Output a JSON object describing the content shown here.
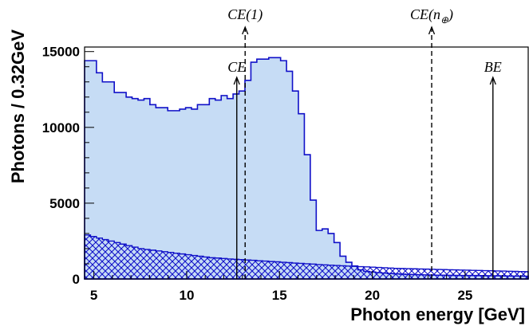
{
  "chart_data": {
    "type": "area",
    "xlabel": "Photon energy [GeV]",
    "ylabel": "Photons / 0.32GeV",
    "xlim": [
      4.5,
      28.4
    ],
    "ylim": [
      0,
      15300
    ],
    "xticks": [
      5,
      10,
      15,
      20,
      25
    ],
    "xtick_labels": [
      "5",
      "10",
      "15",
      "20",
      "25"
    ],
    "yticks": [
      0,
      5000,
      10000,
      15000
    ],
    "ytick_labels": [
      "0",
      "5000",
      "10000",
      "15000"
    ],
    "bin_width": 0.32,
    "grid": false,
    "legend": "none",
    "series": [
      {
        "style": "filled-step",
        "fill": "#c6dcf5",
        "stroke": "#1010c8",
        "x_start": 4.5,
        "values": [
          14400,
          14400,
          13600,
          13000,
          13000,
          12300,
          12300,
          12000,
          11900,
          11800,
          11900,
          11500,
          11300,
          11300,
          11100,
          11100,
          11200,
          11300,
          11200,
          11500,
          11500,
          11900,
          11800,
          12100,
          11900,
          12200,
          12400,
          13100,
          14300,
          14500,
          14500,
          14600,
          14600,
          14400,
          13700,
          12400,
          10900,
          8200,
          5200,
          3200,
          3300,
          3000,
          2400,
          1500,
          1100,
          860,
          600,
          500,
          460,
          420,
          390,
          360,
          340,
          320,
          300,
          290,
          280,
          270,
          260,
          250,
          245,
          240,
          235,
          230,
          230,
          225,
          220,
          215,
          210,
          205,
          200,
          195,
          190,
          185,
          180,
          175,
          170,
          165,
          160,
          155,
          150,
          145,
          140,
          135,
          130,
          125,
          120,
          115,
          115,
          110,
          105,
          100,
          95,
          90,
          85,
          80,
          75,
          70,
          65,
          60,
          55,
          50,
          45,
          40,
          35,
          30,
          25,
          20,
          15,
          10,
          10,
          5,
          5,
          5,
          0,
          0
        ]
      },
      {
        "style": "hatched-step",
        "fill": "#1010c8",
        "stroke": "#1010c8",
        "x_start": 4.5,
        "values": [
          2900,
          2800,
          2700,
          2600,
          2500,
          2400,
          2300,
          2200,
          2100,
          2000,
          1950,
          1900,
          1850,
          1800,
          1750,
          1700,
          1650,
          1600,
          1550,
          1500,
          1450,
          1400,
          1380,
          1350,
          1320,
          1300,
          1280,
          1250,
          1230,
          1200,
          1180,
          1150,
          1130,
          1100,
          1080,
          1050,
          1030,
          1000,
          980,
          950,
          930,
          910,
          890,
          870,
          850,
          830,
          810,
          800,
          780,
          760,
          740,
          720,
          700,
          690,
          680,
          670,
          660,
          650,
          640,
          630,
          620,
          610,
          600,
          590,
          580,
          570,
          560,
          550,
          540,
          530,
          520,
          510,
          500,
          490,
          480,
          470,
          460,
          450,
          440,
          430,
          420,
          410,
          400,
          390,
          380,
          370,
          360,
          350,
          340,
          330,
          320,
          310,
          300,
          290,
          280,
          270,
          260,
          250,
          240,
          230,
          220,
          210,
          200,
          190,
          180,
          170,
          160,
          150,
          140,
          130,
          120,
          110,
          100,
          90,
          80,
          70,
          60
        ]
      }
    ],
    "annotations": [
      {
        "label": "CE(1)",
        "x": 13.15,
        "y_from": 0,
        "style": "dashed",
        "arrow_above_frame": true
      },
      {
        "label": "CE",
        "x": 12.7,
        "y_from": 0,
        "y_to": 13300,
        "style": "solid"
      },
      {
        "label": "CE(n",
        "subscript": "⊕",
        "suffix": ")",
        "x": 23.2,
        "y_from": 0,
        "style": "dashed",
        "arrow_above_frame": true
      },
      {
        "label": "BE",
        "x": 26.5,
        "y_from": 0,
        "y_to": 13300,
        "style": "solid"
      }
    ]
  }
}
